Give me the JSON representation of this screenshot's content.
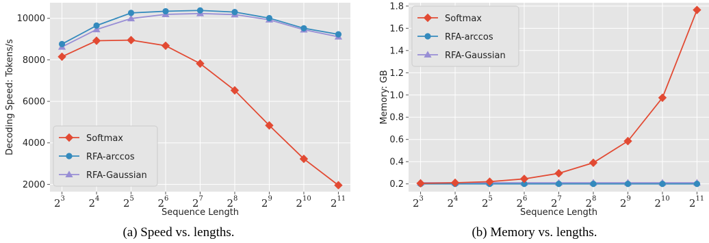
{
  "chart_data": [
    {
      "type": "line",
      "caption": "(a) Speed vs. lengths.",
      "xlabel": "Sequence Length",
      "ylabel": "Decoding Speed: Tokens/s",
      "x_base": "2",
      "x_exponents": [
        3,
        4,
        5,
        6,
        7,
        8,
        9,
        10,
        11
      ],
      "x_tick_labels": [
        "2^3",
        "2^4",
        "2^5",
        "2^6",
        "2^7",
        "2^8",
        "2^9",
        "2^10",
        "2^11"
      ],
      "yticks": [
        2000,
        4000,
        6000,
        8000,
        10000
      ],
      "ytick_labels": [
        "2000",
        "4000",
        "6000",
        "8000",
        "10000"
      ],
      "ylim": [
        1650,
        10750
      ],
      "grid": true,
      "legend_position": "bottom-left",
      "series": [
        {
          "name": "Softmax",
          "color": "#e24a33",
          "marker": "diamond",
          "values": [
            8150,
            8920,
            8950,
            8680,
            7820,
            6530,
            4840,
            3230,
            1960
          ]
        },
        {
          "name": "RFA-arccos",
          "color": "#348abd",
          "marker": "circle",
          "values": [
            8760,
            9650,
            10260,
            10340,
            10380,
            10300,
            10010,
            9520,
            9230
          ]
        },
        {
          "name": "RFA-Gaussian",
          "color": "#988ed5",
          "marker": "triangle",
          "values": [
            8620,
            9460,
            9990,
            10190,
            10230,
            10180,
            9930,
            9450,
            9110
          ]
        }
      ]
    },
    {
      "type": "line",
      "caption": "(b) Memory vs. lengths.",
      "xlabel": "Sequence Length",
      "ylabel": "Memory: GB",
      "x_base": "2",
      "x_exponents": [
        3,
        4,
        5,
        6,
        7,
        8,
        9,
        10,
        11
      ],
      "x_tick_labels": [
        "2^3",
        "2^4",
        "2^5",
        "2^6",
        "2^7",
        "2^8",
        "2^9",
        "2^10",
        "2^11"
      ],
      "yticks": [
        0.2,
        0.4,
        0.6,
        0.8,
        1.0,
        1.2,
        1.4,
        1.6,
        1.8
      ],
      "ytick_labels": [
        "0.2",
        "0.4",
        "0.6",
        "0.8",
        "1.0",
        "1.2",
        "1.4",
        "1.6",
        "1.8"
      ],
      "ylim": [
        0.13,
        1.83
      ],
      "grid": true,
      "legend_position": "top-left",
      "series": [
        {
          "name": "Softmax",
          "color": "#e24a33",
          "marker": "diamond",
          "values": [
            0.205,
            0.21,
            0.22,
            0.245,
            0.295,
            0.39,
            0.585,
            0.975,
            1.765
          ]
        },
        {
          "name": "RFA-arccos",
          "color": "#348abd",
          "marker": "circle",
          "values": [
            0.2,
            0.2,
            0.2,
            0.2,
            0.2,
            0.2,
            0.2,
            0.2,
            0.2
          ]
        },
        {
          "name": "RFA-Gaussian",
          "color": "#988ed5",
          "marker": "triangle",
          "values": [
            0.21,
            0.21,
            0.21,
            0.21,
            0.21,
            0.21,
            0.21,
            0.21,
            0.21
          ]
        }
      ]
    }
  ]
}
